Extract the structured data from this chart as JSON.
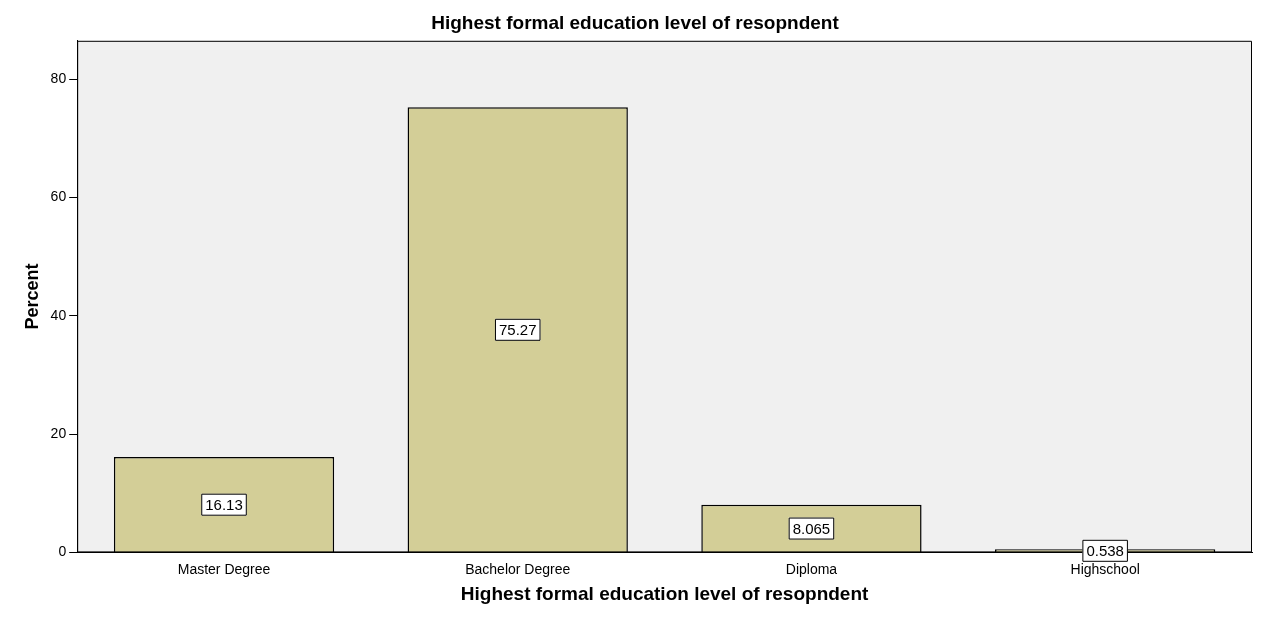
{
  "chart_data": {
    "type": "bar",
    "title": "Highest formal education level of resopndent",
    "xlabel": "Highest formal education level of resopndent",
    "ylabel": "Percent",
    "categories": [
      "Master Degree",
      "Bachelor Degree",
      "Diploma",
      "Highschool"
    ],
    "values": [
      16.13,
      75.27,
      8.065,
      0.538
    ],
    "color": "#d3ce97",
    "ylim": [
      0,
      86.5
    ],
    "yticks": [
      0,
      20,
      40,
      60,
      80
    ],
    "grid": false,
    "legend": false,
    "data_labels": true
  }
}
